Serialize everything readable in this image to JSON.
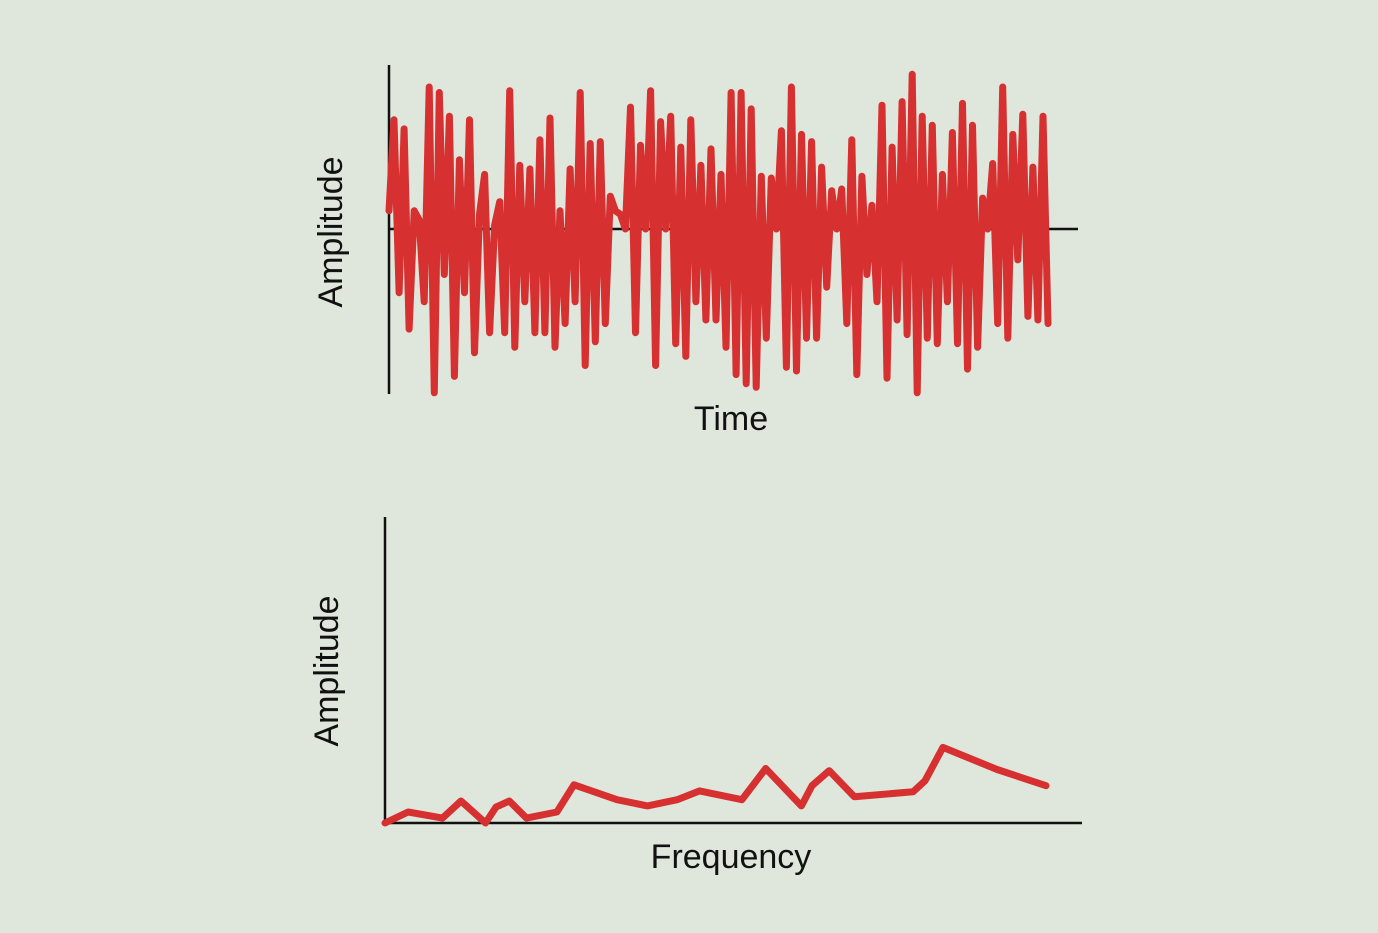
{
  "colors": {
    "background": "#dfe6dc",
    "axis": "#111111",
    "signal": "#d63030"
  },
  "chart_data": [
    {
      "type": "line",
      "title": "",
      "xlabel": "Time",
      "ylabel": "Amplitude",
      "grid": false,
      "ticks": false,
      "baseline": "zero line",
      "ylim": [
        -1.0,
        1.0
      ],
      "xlim": [
        0,
        131
      ],
      "series": [
        {
          "y": [
            0.1,
            0.6,
            -0.35,
            0.55,
            -0.55,
            0.1,
            0.05,
            -0.4,
            0.78,
            -0.9,
            0.75,
            -0.25,
            0.62,
            -0.81,
            0.38,
            -0.35,
            0.6,
            -0.68,
            0.08,
            0.3,
            -0.57,
            0.02,
            0.15,
            -0.57,
            0.76,
            -0.65,
            0.35,
            -0.4,
            0.33,
            -0.57,
            0.49,
            -0.57,
            0.61,
            -0.65,
            0.1,
            -0.52,
            0.33,
            -0.4,
            0.75,
            -0.75,
            0.47,
            -0.62,
            0.48,
            -0.52,
            0.18,
            0.1,
            0.08,
            0.0,
            0.67,
            -0.57,
            0.46,
            0.0,
            0.76,
            -0.75,
            0.59,
            0.0,
            0.62,
            -0.63,
            0.45,
            -0.7,
            0.6,
            -0.4,
            0.35,
            -0.5,
            0.44,
            -0.5,
            0.3,
            -0.65,
            0.75,
            -0.8,
            0.75,
            -0.85,
            0.66,
            -0.87,
            0.29,
            -0.6,
            0.28,
            0.0,
            0.54,
            -0.76,
            0.78,
            -0.78,
            0.52,
            -0.6,
            0.48,
            -0.6,
            0.34,
            -0.32,
            0.21,
            0.0,
            0.22,
            -0.52,
            0.49,
            -0.8,
            0.29,
            -0.25,
            0.13,
            -0.4,
            0.68,
            -0.82,
            0.45,
            -0.5,
            0.7,
            -0.58,
            0.85,
            -0.9,
            0.62,
            -0.6,
            0.57,
            -0.63,
            0.3,
            -0.4,
            0.53,
            -0.63,
            0.69,
            -0.77,
            0.57,
            -0.65,
            0.17,
            0.0,
            0.36,
            -0.52,
            0.78,
            -0.6,
            0.52,
            -0.17,
            0.63,
            -0.48,
            0.34,
            -0.5,
            0.62,
            -0.52
          ],
          "values": [
            0.1,
            0.6,
            -0.35,
            0.55,
            -0.55,
            0.1,
            0.05,
            -0.4,
            0.78,
            -0.9,
            0.75,
            -0.25,
            0.62,
            -0.81,
            0.38,
            -0.35,
            0.6,
            -0.68,
            0.08,
            0.3,
            -0.57,
            0.02,
            0.15,
            -0.57,
            0.76,
            -0.65,
            0.35,
            -0.4,
            0.33,
            -0.57,
            0.49,
            -0.57,
            0.61,
            -0.65,
            0.1,
            -0.52,
            0.33,
            -0.4,
            0.75,
            -0.75,
            0.47,
            -0.62,
            0.48,
            -0.52,
            0.18,
            0.1,
            0.08,
            0.0,
            0.67,
            -0.57,
            0.46,
            0.0,
            0.76,
            -0.75,
            0.59,
            0.0,
            0.62,
            -0.63,
            0.45,
            -0.7,
            0.6,
            -0.4,
            0.35,
            -0.5,
            0.44,
            -0.5,
            0.3,
            -0.65,
            0.75,
            -0.8,
            0.75,
            -0.85,
            0.66,
            -0.87,
            0.29,
            -0.6,
            0.28,
            0.0,
            0.54,
            -0.76,
            0.78,
            -0.78,
            0.52,
            -0.6,
            0.48,
            -0.6,
            0.34,
            -0.32,
            0.21,
            0.0,
            0.22,
            -0.52,
            0.49,
            -0.8,
            0.29,
            -0.25,
            0.13,
            -0.4,
            0.68,
            -0.82,
            0.45,
            -0.5,
            0.7,
            -0.58,
            0.85,
            -0.9,
            0.62,
            -0.6,
            0.57,
            -0.63,
            0.3,
            -0.4,
            0.53,
            -0.63,
            0.69,
            -0.77,
            0.57,
            -0.65,
            0.17,
            0.0,
            0.36,
            -0.52,
            0.78,
            -0.6,
            0.52,
            -0.17,
            0.63,
            -0.48,
            0.34,
            -0.5,
            0.62,
            -0.52
          ]
        }
      ]
    },
    {
      "type": "line",
      "title": "",
      "xlabel": "Frequency",
      "ylabel": "Amplitude",
      "grid": false,
      "ticks": false,
      "xlim": [
        0,
        100
      ],
      "ylim": [
        0,
        100
      ],
      "series": [
        {
          "x": [
            0,
            3.5,
            8.7,
            11.5,
            15.2,
            16.8,
            18.8,
            21.4,
            26.0,
            28.6,
            35.1,
            39.7,
            44.2,
            47.6,
            54.0,
            57.6,
            63.0,
            64.6,
            67.2,
            71.0,
            79.9,
            81.7,
            84.4,
            92.6,
            100.0
          ],
          "y": [
            0,
            3.6,
            1.6,
            7.2,
            0.0,
            5.2,
            7.2,
            1.6,
            3.6,
            12.5,
            7.6,
            5.6,
            7.6,
            10.5,
            7.6,
            17.8,
            5.6,
            12.2,
            17.1,
            8.6,
            10.2,
            13.8,
            24.7,
            17.5,
            12.2
          ],
          "values": [
            0,
            3.6,
            1.6,
            7.2,
            0.0,
            5.2,
            7.2,
            1.6,
            3.6,
            12.5,
            7.6,
            5.6,
            7.6,
            10.5,
            7.6,
            17.8,
            5.6,
            12.2,
            17.1,
            8.6,
            10.2,
            13.8,
            24.7,
            17.5,
            12.2
          ]
        }
      ]
    }
  ]
}
